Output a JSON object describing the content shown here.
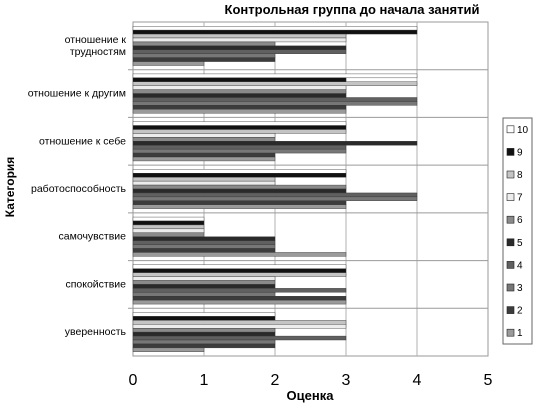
{
  "chart_data": {
    "type": "bar",
    "orientation": "horizontal",
    "title": "Контрольная группа до начала занятий",
    "xlabel": "Оценка",
    "ylabel": "Категория",
    "xlim": [
      0,
      5
    ],
    "xticks": [
      "0",
      "1",
      "2",
      "3",
      "4",
      "5"
    ],
    "grid": "vertical",
    "legend_position": "right",
    "categories_top_to_bottom": [
      "отношение к трудностям",
      "отношение к другим",
      "отношение к себе",
      "работоспособность",
      "самочувствие",
      "спокойствие",
      "уверенность"
    ],
    "category_label_lines": [
      [
        "отношение к",
        "трудностям"
      ],
      [
        "отношение к другим"
      ],
      [
        "отношение к себе"
      ],
      [
        "работоспособность"
      ],
      [
        "самочувствие"
      ],
      [
        "спокойствие"
      ],
      [
        "уверенность"
      ]
    ],
    "series": [
      {
        "name": "10",
        "color": "#ffffff",
        "values": [
          4,
          4,
          3,
          3,
          1,
          3,
          2
        ]
      },
      {
        "name": "9",
        "color": "#111111",
        "values": [
          4,
          3,
          3,
          3,
          1,
          3,
          2
        ]
      },
      {
        "name": "8",
        "color": "#c4c4c4",
        "values": [
          3,
          4,
          3,
          2,
          1,
          3,
          3
        ]
      },
      {
        "name": "7",
        "color": "#ececec",
        "values": [
          3,
          3,
          2,
          2,
          1,
          2,
          3
        ]
      },
      {
        "name": "6",
        "color": "#8a8a8a",
        "values": [
          2,
          3,
          2,
          3,
          1,
          2,
          2
        ]
      },
      {
        "name": "5",
        "color": "#2a2a2a",
        "values": [
          3,
          3,
          4,
          3,
          2,
          2,
          2
        ]
      },
      {
        "name": "4",
        "color": "#606060",
        "values": [
          3,
          4,
          3,
          4,
          2,
          3,
          3
        ]
      },
      {
        "name": "3",
        "color": "#777777",
        "values": [
          2,
          4,
          3,
          4,
          2,
          2,
          2
        ]
      },
      {
        "name": "2",
        "color": "#3c3c3c",
        "values": [
          2,
          3,
          2,
          3,
          2,
          3,
          2
        ]
      },
      {
        "name": "1",
        "color": "#9a9a9a",
        "values": [
          1,
          3,
          2,
          3,
          3,
          3,
          1
        ]
      }
    ]
  }
}
